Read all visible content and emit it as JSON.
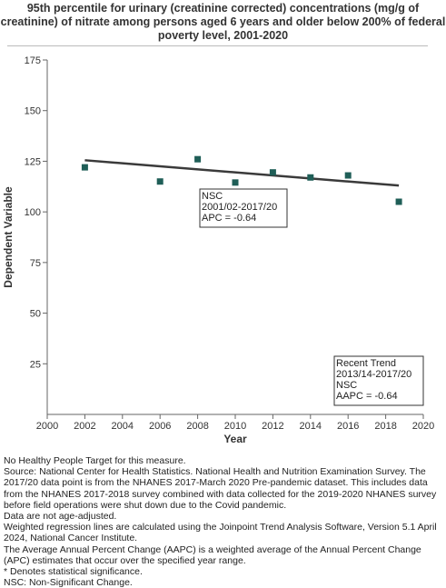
{
  "chart_data": {
    "type": "scatter",
    "title": "95th percentile for urinary (creatinine corrected) concentrations (mg/g of creatinine) of nitrate among  persons aged 6 years and older below 200% of federal poverty level, 2001-2020",
    "xlabel": "Year",
    "ylabel": "Dependent Variable",
    "xlim": [
      2000,
      2020
    ],
    "ylim": [
      0,
      175
    ],
    "xticks": [
      2000,
      2002,
      2004,
      2006,
      2008,
      2010,
      2012,
      2014,
      2016,
      2018,
      2020
    ],
    "yticks": [
      25,
      50,
      75,
      100,
      125,
      150,
      175
    ],
    "grid": false,
    "colors": {
      "points": "#1f5e57",
      "trend": "#3a3a3a"
    },
    "series": [
      {
        "points": [
          {
            "x": 2002,
            "y": 122
          },
          {
            "x": 2006,
            "y": 115
          },
          {
            "x": 2008,
            "y": 126
          },
          {
            "x": 2010,
            "y": 114.5
          },
          {
            "x": 2012,
            "y": 119.5
          },
          {
            "x": 2014,
            "y": 117
          },
          {
            "x": 2016,
            "y": 118
          },
          {
            "x": 2018.7,
            "y": 105
          }
        ]
      }
    ],
    "trend_line": {
      "x": [
        2002,
        2018.7
      ],
      "y": [
        125.5,
        113
      ]
    },
    "annotations": [
      {
        "lines": [
          "NSC",
          "2001/02-2017/20",
          "APC = -0.64"
        ]
      },
      {
        "lines": [
          "Recent Trend",
          "2013/14-2017/20",
          "NSC",
          "AAPC = -0.64"
        ]
      }
    ]
  },
  "footnotes": [
    "No Healthy People Target for this measure.",
    "Source: National Center for Health Statistics. National Health and Nutrition Examination Survey. The 2017/20 data point is from the NHANES 2017-March 2020 Pre-pandemic dataset. This includes data from the NHANES 2017-2018 survey combined with data collected for the 2019-2020 NHANES survey before field operations were shut down due to the Covid pandemic.",
    "Data are not age-adjusted.",
    "Weighted regression lines are calculated using the Joinpoint Trend Analysis Software, Version 5.1 April 2024, National Cancer Institute.",
    "The Average Annual Percent Change (AAPC) is a weighted average of the Annual Percent Change (APC) estimates that occur over the specified year range.",
    "* Denotes statistical significance.",
    "NSC: Non-Significant Change."
  ]
}
